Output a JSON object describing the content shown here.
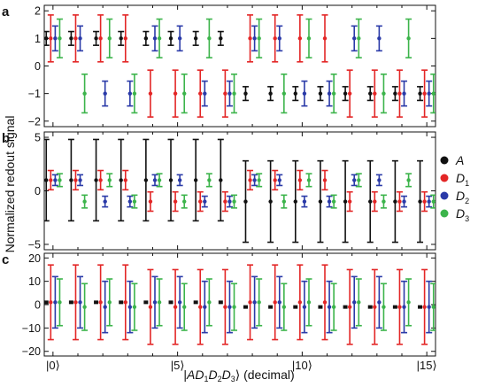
{
  "chart_data": {
    "type": "scatter",
    "shared_ylabel": "Normalized redout signal",
    "xlabel": "|AD₁D₂D₃⟩ (decimal)",
    "x_categories": [
      0,
      1,
      2,
      3,
      4,
      5,
      6,
      7,
      8,
      9,
      10,
      11,
      12,
      13,
      14,
      15
    ],
    "x_tick_labels": [
      {
        "x": 0,
        "label": "|0⟩"
      },
      {
        "x": 5,
        "label": "|5⟩"
      },
      {
        "x": 10,
        "label": "|10⟩"
      },
      {
        "x": 15,
        "label": "|15⟩"
      }
    ],
    "legend": {
      "placement": "right",
      "entries": [
        {
          "key": "A",
          "main": "A",
          "sub": "",
          "color": "#111111"
        },
        {
          "key": "D1",
          "main": "D",
          "sub": "1",
          "color": "#e32626"
        },
        {
          "key": "D2",
          "main": "D",
          "sub": "2",
          "color": "#2a3aa8"
        },
        {
          "key": "D3",
          "main": "D",
          "sub": "3",
          "color": "#3cb44b"
        }
      ]
    },
    "series_offsets": {
      "A": -0.27,
      "D1": -0.09,
      "D2": 0.09,
      "D3": 0.27
    },
    "panels": [
      {
        "label": "a",
        "ylim": [
          -2.2,
          2.2
        ],
        "yticks": [
          -2,
          -1,
          0,
          1,
          2
        ],
        "series": {
          "A": {
            "values": [
              1,
              1,
              1,
              1,
              1,
              1,
              1,
              1,
              -1,
              -1,
              -1,
              -1,
              -1,
              -1,
              -1,
              -1
            ],
            "errors": [
              0.25,
              0.25,
              0.25,
              0.25,
              0.25,
              0.25,
              0.25,
              0.25,
              0.25,
              0.25,
              0.25,
              0.25,
              0.25,
              0.25,
              0.25,
              0.25
            ]
          },
          "D1": {
            "values": [
              1,
              1,
              1,
              1,
              -1,
              -1,
              -1,
              -1,
              1,
              1,
              1,
              1,
              -1,
              -1,
              -1,
              -1
            ],
            "errors": [
              0.85,
              0.85,
              0.85,
              0.85,
              0.85,
              0.85,
              0.85,
              0.85,
              0.85,
              0.85,
              0.85,
              0.85,
              0.85,
              0.85,
              0.85,
              0.85
            ]
          },
          "D2": {
            "values": [
              1,
              1,
              -1,
              -1,
              1,
              1,
              -1,
              -1,
              1,
              1,
              -1,
              -1,
              1,
              1,
              -1,
              -1
            ],
            "errors": [
              0.45,
              0.45,
              0.45,
              0.45,
              0.45,
              0.45,
              0.45,
              0.45,
              0.45,
              0.45,
              0.45,
              0.45,
              0.45,
              0.45,
              0.45,
              0.45
            ]
          },
          "D3": {
            "values": [
              1,
              -1,
              1,
              -1,
              1,
              -1,
              1,
              -1,
              1,
              -1,
              1,
              -1,
              1,
              -1,
              1,
              -1
            ],
            "errors": [
              0.7,
              0.7,
              0.7,
              0.7,
              0.7,
              0.7,
              0.7,
              0.7,
              0.7,
              0.7,
              0.7,
              0.7,
              0.7,
              0.7,
              0.7,
              0.7
            ]
          }
        }
      },
      {
        "label": "b",
        "ylim": [
          -5.5,
          5.5
        ],
        "yticks": [
          -5,
          0,
          5
        ],
        "series": {
          "A": {
            "values": [
              1,
              1,
              1,
              1,
              1,
              1,
              1,
              1,
              -1,
              -1,
              -1,
              -1,
              -1,
              -1,
              -1,
              -1
            ],
            "errors": [
              3.8,
              3.8,
              3.8,
              3.8,
              3.8,
              3.8,
              3.8,
              3.8,
              3.8,
              3.8,
              3.8,
              3.8,
              3.8,
              3.8,
              3.8,
              3.8
            ]
          },
          "D1": {
            "values": [
              1,
              1,
              1,
              1,
              -1,
              -1,
              -1,
              -1,
              1,
              1,
              1,
              1,
              -1,
              -1,
              -1,
              -1
            ],
            "errors": [
              0.9,
              0.9,
              0.9,
              0.9,
              0.9,
              0.9,
              0.9,
              0.9,
              0.9,
              0.9,
              0.9,
              0.9,
              0.9,
              0.9,
              0.9,
              0.9
            ]
          },
          "D2": {
            "values": [
              1,
              1,
              -1,
              -1,
              1,
              1,
              -1,
              -1,
              1,
              1,
              -1,
              -1,
              1,
              1,
              -1,
              -1
            ],
            "errors": [
              0.5,
              0.5,
              0.5,
              0.5,
              0.5,
              0.5,
              0.5,
              0.5,
              0.5,
              0.5,
              0.5,
              0.5,
              0.5,
              0.5,
              0.5,
              0.5
            ]
          },
          "D3": {
            "values": [
              1,
              -1,
              1,
              -1,
              1,
              -1,
              1,
              -1,
              1,
              -1,
              1,
              -1,
              1,
              -1,
              1,
              -1
            ],
            "errors": [
              0.6,
              0.6,
              0.6,
              0.6,
              0.6,
              0.6,
              0.6,
              0.6,
              0.6,
              0.6,
              0.6,
              0.6,
              0.6,
              0.6,
              0.6,
              0.6
            ]
          }
        }
      },
      {
        "label": "c",
        "ylim": [
          -22,
          22
        ],
        "yticks": [
          -20,
          -10,
          0,
          10,
          20
        ],
        "series": {
          "A": {
            "values": [
              1,
              1,
              1,
              1,
              1,
              1,
              1,
              1,
              -1,
              -1,
              -1,
              -1,
              -1,
              -1,
              -1,
              -1
            ],
            "errors": [
              0,
              0,
              0,
              0,
              0,
              0,
              0,
              0,
              0,
              0,
              0,
              0,
              0,
              0,
              0,
              0
            ]
          },
          "D1": {
            "values": [
              1,
              1,
              1,
              1,
              -1,
              -1,
              -1,
              -1,
              1,
              1,
              1,
              1,
              -1,
              -1,
              -1,
              -1
            ],
            "errors": [
              16,
              16,
              16,
              16,
              16,
              16,
              16,
              16,
              16,
              16,
              16,
              16,
              16,
              16,
              16,
              16
            ]
          },
          "D2": {
            "values": [
              1,
              1,
              -1,
              -1,
              1,
              1,
              -1,
              -1,
              1,
              1,
              -1,
              -1,
              1,
              1,
              -1,
              -1
            ],
            "errors": [
              11,
              11,
              11,
              11,
              11,
              11,
              11,
              11,
              11,
              11,
              11,
              11,
              11,
              11,
              11,
              11
            ]
          },
          "D3": {
            "values": [
              1,
              -1,
              1,
              -1,
              1,
              -1,
              1,
              -1,
              1,
              -1,
              1,
              -1,
              1,
              -1,
              1,
              -1
            ],
            "errors": [
              10,
              10,
              10,
              10,
              10,
              10,
              10,
              10,
              10,
              10,
              10,
              10,
              10,
              10,
              10,
              10
            ]
          }
        }
      }
    ]
  }
}
